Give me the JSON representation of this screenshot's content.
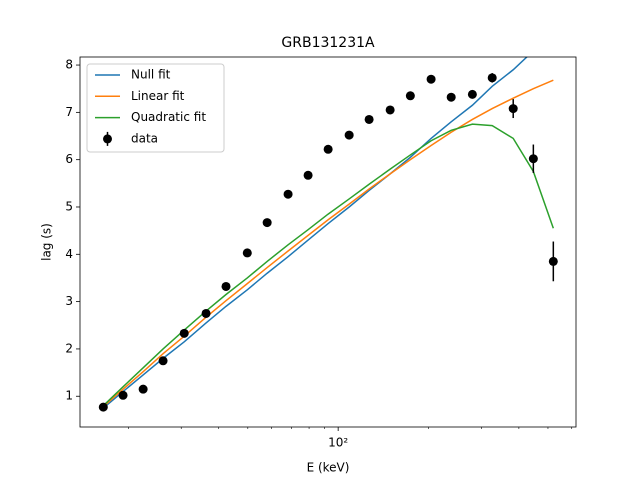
{
  "chart_data": {
    "type": "line",
    "title": "GRB131231A",
    "x_label": "E (keV)",
    "y_label": "lag (s)",
    "xscale": "log",
    "xlim": [
      13.8,
      620
    ],
    "ylim": [
      0.35,
      8.17
    ],
    "xticks": [
      {
        "value": 100,
        "label": "10²"
      }
    ],
    "xminorticks": [
      20,
      30,
      40,
      50,
      60,
      70,
      80,
      90,
      200,
      300,
      400,
      500,
      600
    ],
    "yticks": [
      1,
      2,
      3,
      4,
      5,
      6,
      7,
      8
    ],
    "legend": "upper left",
    "x": [
      16.5,
      19.2,
      22.4,
      26.1,
      30.7,
      36.3,
      42.3,
      49.8,
      58.0,
      68.1,
      79.4,
      92.6,
      108.8,
      126.8,
      149,
      174,
      204,
      238,
      280,
      326,
      383,
      447,
      521
    ],
    "series": [
      {
        "name": "Null fit",
        "color": "#1f77b4",
        "style": "line",
        "values": [
          0.75,
          1.1,
          1.45,
          1.8,
          2.15,
          2.55,
          2.9,
          3.25,
          3.6,
          3.95,
          4.3,
          4.65,
          5.0,
          5.35,
          5.7,
          6.05,
          6.45,
          6.8,
          7.15,
          7.55,
          7.9,
          8.3,
          8.65
        ]
      },
      {
        "name": "Linear fit",
        "color": "#ff7f0e",
        "style": "line",
        "values": [
          0.78,
          1.15,
          1.52,
          1.9,
          2.27,
          2.67,
          3.02,
          3.38,
          3.72,
          4.07,
          4.4,
          4.73,
          5.06,
          5.38,
          5.7,
          6.0,
          6.3,
          6.58,
          6.85,
          7.08,
          7.3,
          7.5,
          7.68
        ]
      },
      {
        "name": "Quadratic fit",
        "color": "#2ca02c",
        "style": "line",
        "values": [
          0.8,
          1.2,
          1.6,
          2.0,
          2.4,
          2.8,
          3.15,
          3.5,
          3.85,
          4.2,
          4.52,
          4.85,
          5.17,
          5.48,
          5.8,
          6.1,
          6.4,
          6.62,
          6.75,
          6.72,
          6.45,
          5.75,
          4.55
        ]
      },
      {
        "name": "data",
        "color": "#000000",
        "style": "errorbar",
        "values": [
          0.77,
          1.02,
          1.15,
          1.75,
          2.33,
          2.75,
          3.32,
          4.03,
          4.67,
          5.27,
          5.67,
          6.22,
          6.52,
          6.85,
          7.05,
          7.35,
          7.7,
          7.32,
          7.38,
          7.73,
          7.08,
          6.02,
          3.85
        ],
        "errors": [
          0.05,
          0.05,
          0.07,
          0.05,
          0.05,
          0.07,
          0.07,
          0.07,
          0.05,
          0.05,
          0.05,
          0.05,
          0.05,
          0.07,
          0.05,
          0.05,
          0.08,
          0.07,
          0.08,
          0.1,
          0.2,
          0.3,
          0.42
        ]
      }
    ]
  }
}
